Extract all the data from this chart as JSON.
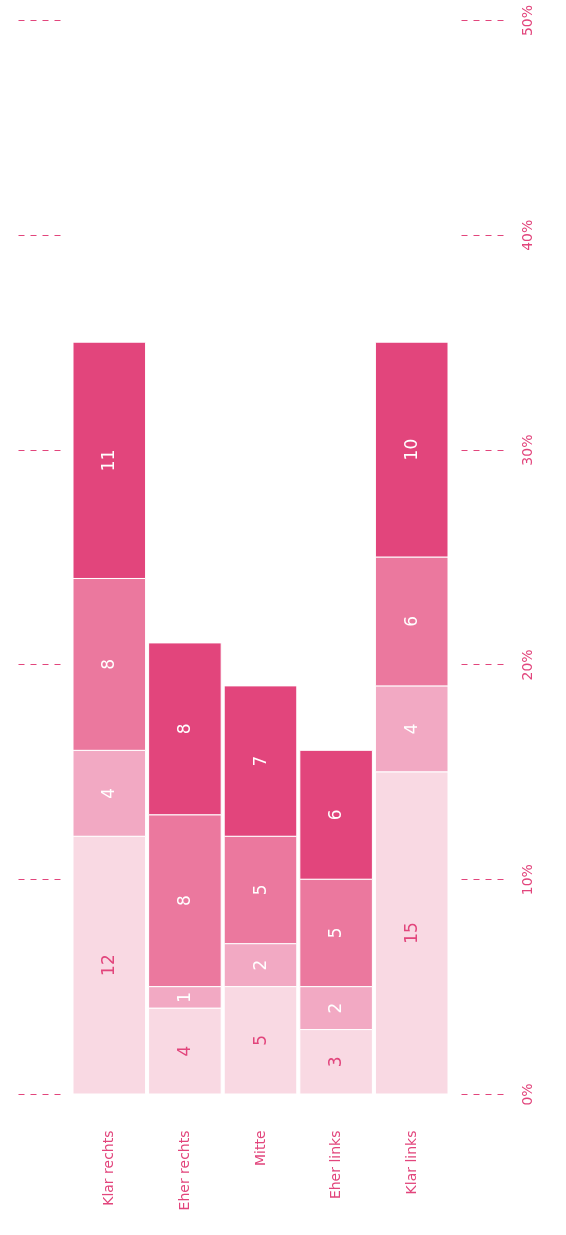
{
  "chart_data": {
    "type": "bar",
    "stacked": true,
    "data_labels": true,
    "grid": false,
    "categories": [
      "Klar rechts",
      "Eher rechts",
      "Mitte",
      "Eher links",
      "Klar links"
    ],
    "series": [
      {
        "color": "#f9d9e3",
        "values": [
          12,
          4,
          5,
          3,
          15
        ]
      },
      {
        "color": "#f2a9c3",
        "values": [
          4,
          1,
          2,
          2,
          4
        ]
      },
      {
        "color": "#eb789e",
        "values": [
          8,
          8,
          5,
          5,
          6
        ]
      },
      {
        "color": "#e2457c",
        "values": [
          11,
          8,
          7,
          6,
          10
        ]
      }
    ],
    "ylim": [
      0,
      50
    ],
    "yticks": [
      {
        "value": 0,
        "label": "0%"
      },
      {
        "value": 10,
        "label": "10%"
      },
      {
        "value": 20,
        "label": "20%"
      },
      {
        "value": 30,
        "label": "30%"
      },
      {
        "value": 40,
        "label": "40%"
      },
      {
        "value": 50,
        "label": "50%"
      }
    ]
  }
}
